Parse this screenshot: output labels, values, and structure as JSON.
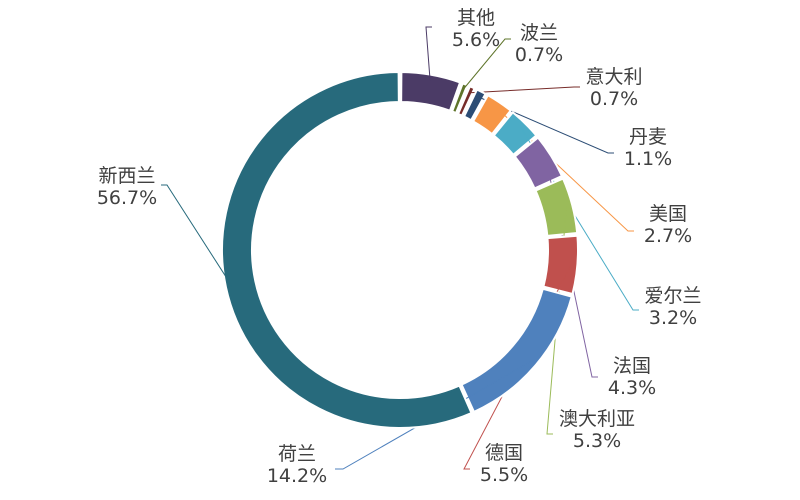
{
  "chart_data": {
    "type": "pie",
    "donut": true,
    "title": "",
    "slices": [
      {
        "label": "其他",
        "value": 5.6,
        "value_label": "5.6%",
        "color": "#4B3B66"
      },
      {
        "label": "波兰",
        "value": 0.7,
        "value_label": "0.7%",
        "color": "#5E742A"
      },
      {
        "label": "意大利",
        "value": 0.7,
        "value_label": "0.7%",
        "color": "#772C2A"
      },
      {
        "label": "丹麦",
        "value": 1.1,
        "value_label": "1.1%",
        "color": "#2C4D75"
      },
      {
        "label": "美国",
        "value": 2.7,
        "value_label": "2.7%",
        "color": "#F79646"
      },
      {
        "label": "爱尔兰",
        "value": 3.2,
        "value_label": "3.2%",
        "color": "#4BACC6"
      },
      {
        "label": "法国",
        "value": 4.3,
        "value_label": "4.3%",
        "color": "#8064A2"
      },
      {
        "label": "澳大利亚",
        "value": 5.3,
        "value_label": "5.3%",
        "color": "#9BBB59"
      },
      {
        "label": "德国",
        "value": 5.5,
        "value_label": "5.5%",
        "color": "#C0504D"
      },
      {
        "label": "荷兰",
        "value": 14.2,
        "value_label": "14.2%",
        "color": "#4F81BD"
      },
      {
        "label": "新西兰",
        "value": 56.7,
        "value_label": "56.7%",
        "color": "#276A7C"
      }
    ],
    "legend": "none"
  }
}
